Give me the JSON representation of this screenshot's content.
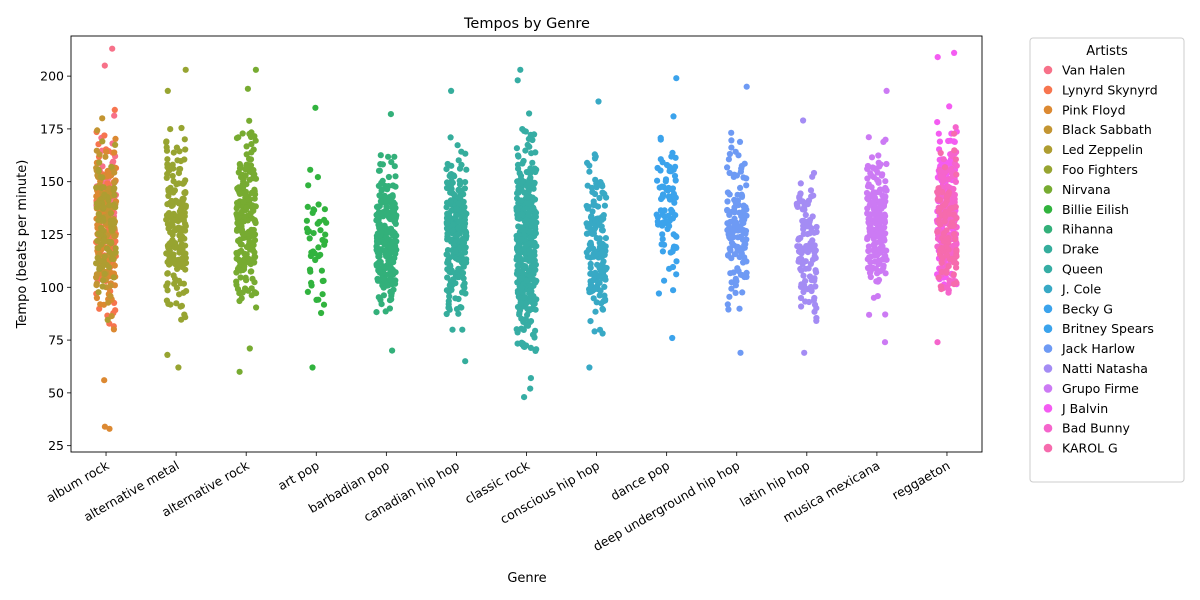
{
  "chart_data": {
    "type": "scatter",
    "title": "Tempos by Genre",
    "xlabel": "Genre",
    "ylabel": "Tempo (beats per minute)",
    "categories": [
      "album rock",
      "alternative metal",
      "alternative rock",
      "art pop",
      "barbadian pop",
      "canadian hip hop",
      "classic rock",
      "conscious hip hop",
      "dance pop",
      "deep underground hip hop",
      "latin hip hop",
      "musica mexicana",
      "reggaeton"
    ],
    "ylim": [
      22,
      219
    ],
    "yticks": [
      25,
      50,
      75,
      100,
      125,
      150,
      175,
      200
    ],
    "grid": false,
    "legend": {
      "title": "Artists",
      "placement": "outside-right"
    },
    "series": [
      {
        "name": "Van Halen",
        "color": "#f77189",
        "category": "album rock",
        "count": 70,
        "range": [
          72,
          210
        ],
        "extremes": [
          213,
          205
        ]
      },
      {
        "name": "Lynyrd Skynyrd",
        "color": "#f7754f",
        "category": "album rock",
        "count": 80,
        "range": [
          60,
          205
        ],
        "extremes": []
      },
      {
        "name": "Pink Floyd",
        "color": "#dc8932",
        "category": "album rock",
        "count": 90,
        "range": [
          55,
          208
        ],
        "extremes": [
          33,
          34,
          56
        ]
      },
      {
        "name": "Black Sabbath",
        "color": "#c39532",
        "category": "album rock",
        "count": 70,
        "range": [
          70,
          200
        ],
        "extremes": []
      },
      {
        "name": "Led Zeppelin",
        "color": "#ae9d31",
        "category": "album rock",
        "count": 80,
        "range": [
          72,
          190
        ],
        "extremes": []
      },
      {
        "name": "Foo Fighters",
        "color": "#97a431",
        "category": "alternative metal",
        "count": 180,
        "range": [
          62,
          203
        ],
        "extremes": [
          203,
          193,
          68,
          62
        ]
      },
      {
        "name": "Nirvana",
        "color": "#77ab31",
        "category": "alternative rock",
        "count": 200,
        "range": [
          60,
          203
        ],
        "extremes": [
          203,
          194,
          60,
          71
        ]
      },
      {
        "name": "Billie Eilish",
        "color": "#31b33e",
        "category": "art pop",
        "count": 45,
        "range": [
          62,
          185
        ],
        "extremes": [
          185,
          62
        ]
      },
      {
        "name": "Rihanna",
        "color": "#33b07a",
        "category": "barbadian pop",
        "count": 230,
        "range": [
          70,
          182
        ],
        "extremes": [
          182,
          70
        ]
      },
      {
        "name": "Drake",
        "color": "#35ad9c",
        "category": "canadian hip hop",
        "count": 260,
        "range": [
          65,
          193
        ],
        "extremes": [
          193,
          65
        ]
      },
      {
        "name": "Queen",
        "color": "#36ada4",
        "category": "classic rock",
        "count": 380,
        "range": [
          48,
          203
        ],
        "extremes": [
          203,
          198,
          48,
          52,
          57
        ]
      },
      {
        "name": "J. Cole",
        "color": "#38a9c5",
        "category": "conscious hip hop",
        "count": 150,
        "range": [
          62,
          188
        ],
        "extremes": [
          188,
          62
        ]
      },
      {
        "name": "Becky G",
        "color": "#3ba3ec",
        "category": "dance pop",
        "count": 90,
        "range": [
          76,
          199
        ],
        "extremes": [
          199,
          76
        ]
      },
      {
        "name": "Britney Spears",
        "color": "#3ba3ec",
        "category": "dance pop",
        "count": 0,
        "range": [
          90,
          130
        ],
        "extremes": []
      },
      {
        "name": "Jack Harlow",
        "color": "#6e9af4",
        "category": "deep underground hip hop",
        "count": 130,
        "range": [
          69,
          195
        ],
        "extremes": [
          195,
          69
        ]
      },
      {
        "name": "Natti Natasha",
        "color": "#a48cf4",
        "category": "latin hip hop",
        "count": 110,
        "range": [
          69,
          179
        ],
        "extremes": [
          179,
          69
        ]
      },
      {
        "name": "Grupo Firme",
        "color": "#cc7af4",
        "category": "musica mexicana",
        "count": 190,
        "range": [
          74,
          193
        ],
        "extremes": [
          193,
          74
        ]
      },
      {
        "name": "J Balvin",
        "color": "#f45cf2",
        "category": "reggaeton",
        "count": 150,
        "range": [
          76,
          211
        ],
        "extremes": [
          211,
          209
        ]
      },
      {
        "name": "Bad Bunny",
        "color": "#f565cc",
        "category": "reggaeton",
        "count": 130,
        "range": [
          74,
          196
        ],
        "extremes": [
          74
        ]
      },
      {
        "name": "KAROL G",
        "color": "#f66bad",
        "category": "reggaeton",
        "count": 80,
        "range": [
          76,
          190
        ],
        "extremes": []
      }
    ]
  }
}
